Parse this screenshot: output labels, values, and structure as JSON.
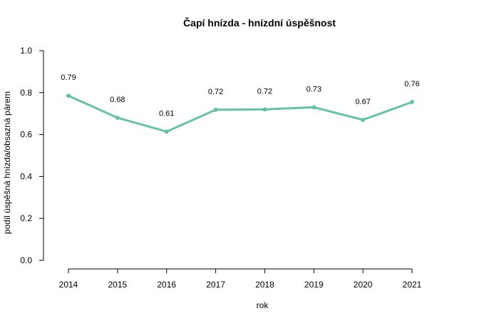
{
  "chart_data": {
    "type": "line",
    "title": "Čapí hnízda - hnízdní úspěšnost",
    "xlabel": "rok",
    "ylabel": "podíl úspěšná hnízda/obsazná párem",
    "x": [
      "2014",
      "2015",
      "2016",
      "2017",
      "2018",
      "2019",
      "2020",
      "2021"
    ],
    "values": [
      0.785,
      0.68,
      0.614,
      0.718,
      0.72,
      0.73,
      0.67,
      0.755
    ],
    "data_labels": [
      "0.79",
      "0.68",
      "0.61",
      "0.72",
      "0.72",
      "0.73",
      "0.67",
      "0.76"
    ],
    "ylim": [
      0,
      1
    ],
    "yticks": [
      "0.0",
      "0.2",
      "0.4",
      "0.6",
      "0.8",
      "1.0"
    ],
    "grid": false,
    "line_color": "#66c2a5"
  }
}
